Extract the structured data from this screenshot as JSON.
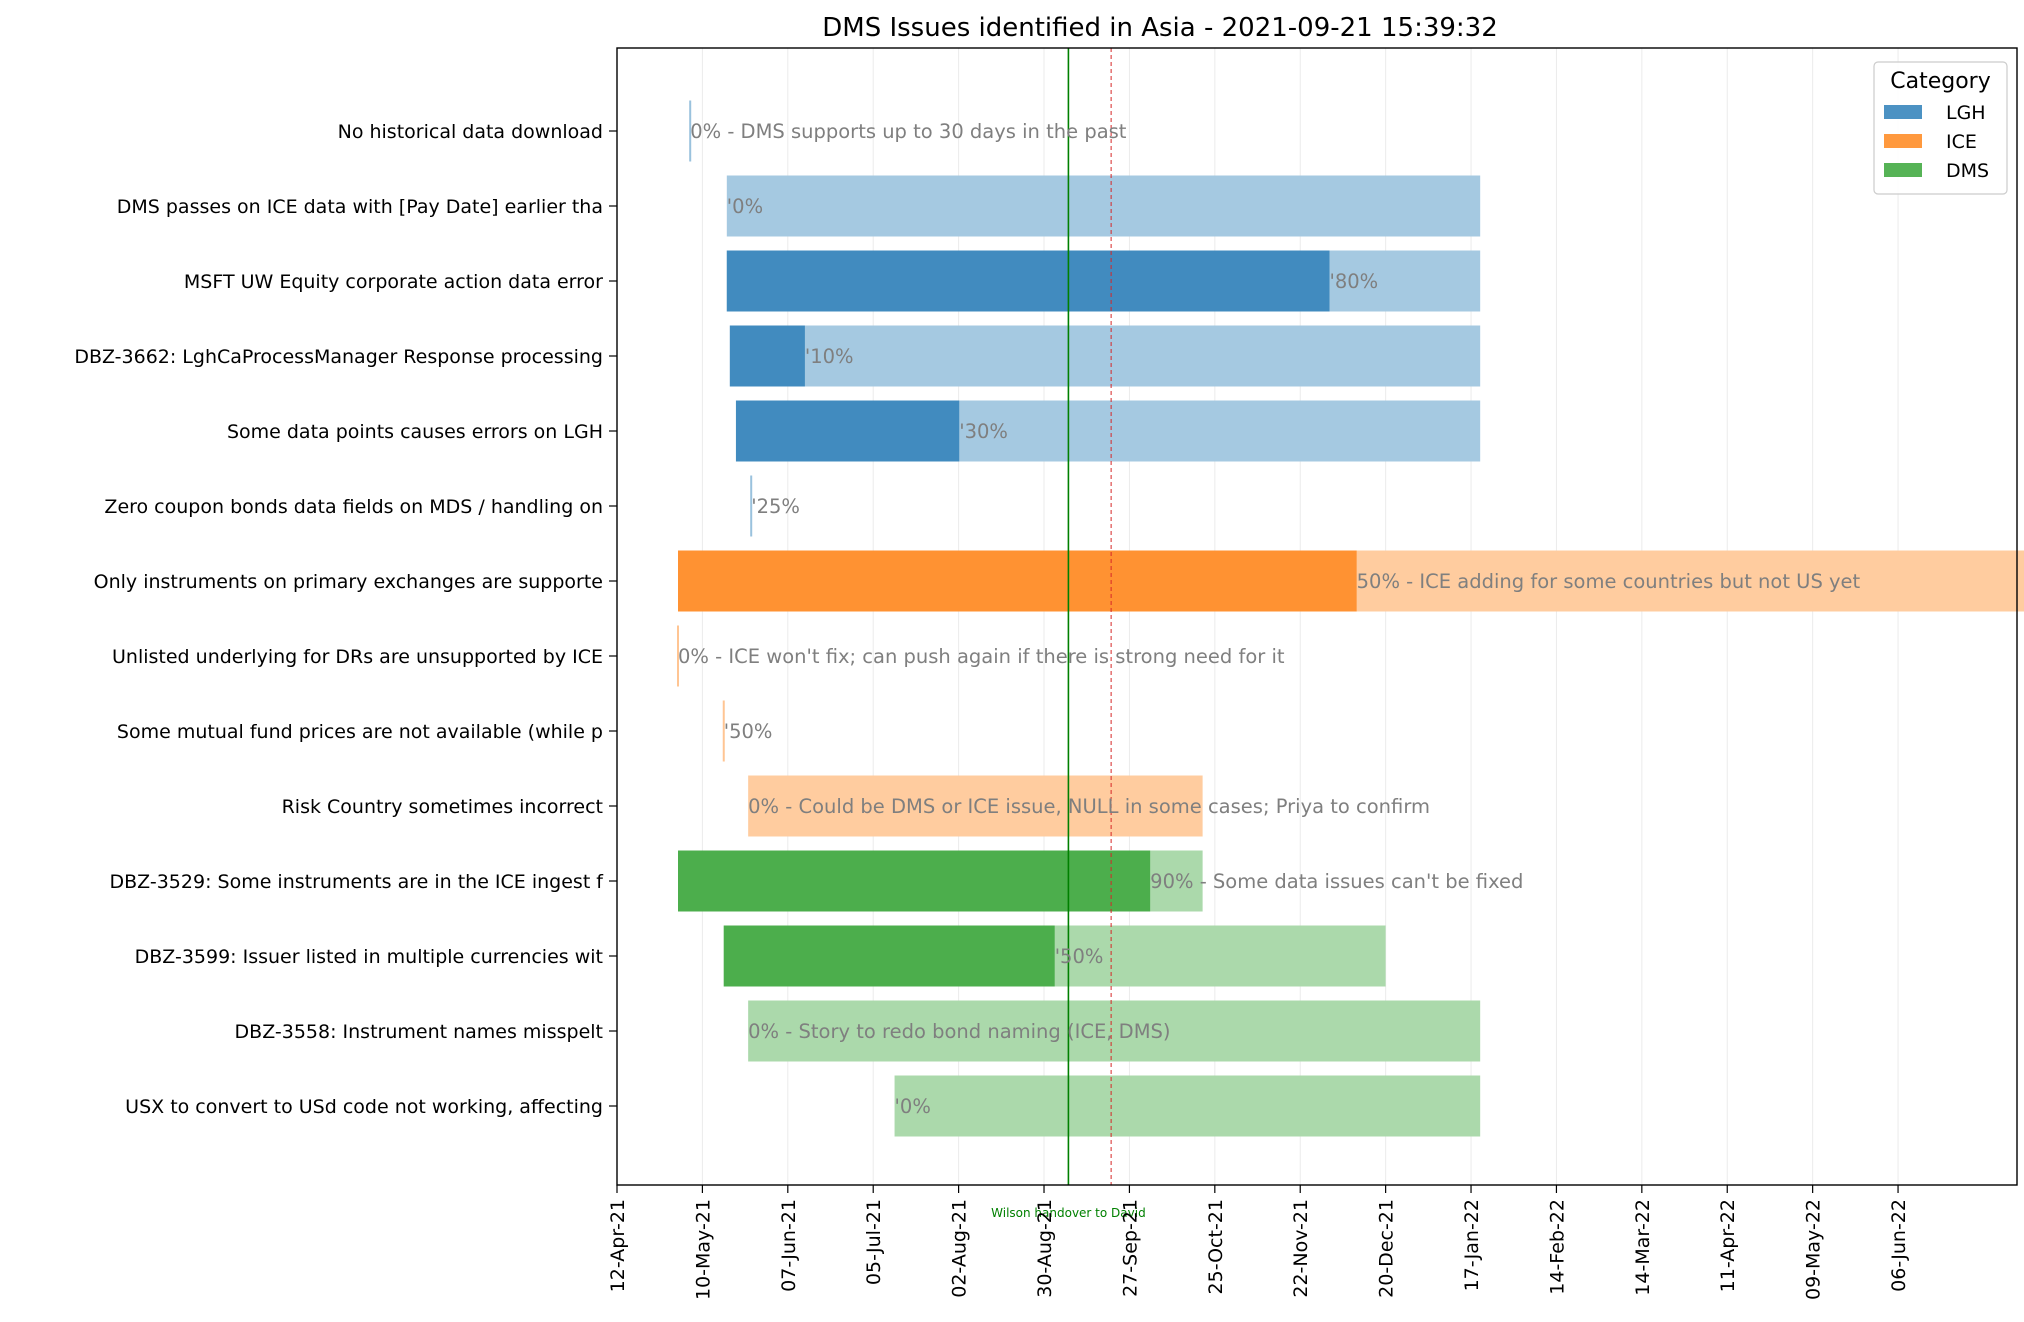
{
  "chart_data": {
    "type": "gantt",
    "title": "DMS Issues identified in Asia - 2021-09-21 15:39:32",
    "x_axis": {
      "type": "date",
      "range": [
        "2021-04-12",
        "2022-07-15"
      ],
      "tick_labels": [
        "12-Apr-21",
        "10-May-21",
        "07-Jun-21",
        "05-Jul-21",
        "02-Aug-21",
        "30-Aug-21",
        "27-Sep-21",
        "25-Oct-21",
        "22-Nov-21",
        "20-Dec-21",
        "17-Jan-22",
        "14-Feb-22",
        "14-Mar-22",
        "11-Apr-22",
        "09-May-22",
        "06-Jun-22"
      ],
      "tick_dates": [
        "2021-04-12",
        "2021-05-10",
        "2021-06-07",
        "2021-07-05",
        "2021-08-02",
        "2021-08-30",
        "2021-09-27",
        "2021-10-25",
        "2021-11-22",
        "2021-12-20",
        "2022-01-17",
        "2022-02-14",
        "2022-03-14",
        "2022-04-11",
        "2022-05-09",
        "2022-06-06"
      ],
      "vertical_grid": true
    },
    "colors": {
      "LGH": "#1f77b4",
      "ICE": "#ff7f0e",
      "DMS": "#2ca02c",
      "today_line": "#d62728"
    },
    "legend": {
      "title": "Category",
      "placement": "top-right",
      "entries": [
        "LGH",
        "ICE",
        "DMS"
      ]
    },
    "markers": [
      {
        "date": "2021-09-07",
        "label": "Wilson handover to David",
        "color": "#008000"
      },
      {
        "date": "2021-09-21",
        "label": "",
        "color": "#d62728",
        "style": "dashed"
      }
    ],
    "tasks": [
      {
        "name": "No historical data download",
        "category": "LGH",
        "start": "2021-05-06",
        "end": "2021-05-06",
        "progress": 0,
        "label": "0% - DMS supports up to 30 days in the past"
      },
      {
        "name": "DMS passes on ICE data with [Pay Date] earlier tha",
        "category": "LGH",
        "start": "2021-05-18",
        "end": "2022-01-20",
        "progress": 0,
        "label": "'0%"
      },
      {
        "name": "MSFT UW Equity corporate action data error",
        "category": "LGH",
        "start": "2021-05-18",
        "end": "2022-01-20",
        "progress": 0.8,
        "label": "'80%"
      },
      {
        "name": "DBZ-3662: LghCaProcessManager Response processing ",
        "category": "LGH",
        "start": "2021-05-19",
        "end": "2022-01-20",
        "progress": 0.1,
        "label": "'10%"
      },
      {
        "name": "Some data points causes errors on LGH",
        "category": "LGH",
        "start": "2021-05-21",
        "end": "2022-01-20",
        "progress": 0.3,
        "label": "'30%"
      },
      {
        "name": "Zero coupon bonds data fields on MDS / handling on",
        "category": "LGH",
        "start": "2021-05-26",
        "end": "2021-05-26",
        "progress": 0.25,
        "label": "'25%"
      },
      {
        "name": "Only instruments on primary exchanges are supporte",
        "category": "ICE",
        "start": "2021-05-02",
        "end": "2022-07-21",
        "progress": 0.5,
        "label": "50% - ICE adding for some countries but not US yet"
      },
      {
        "name": "Unlisted underlying for DRs are unsupported by ICE",
        "category": "ICE",
        "start": "2021-05-02",
        "end": "2021-05-02",
        "progress": 0,
        "label": "0% - ICE won't fix; can push again if there is strong need for it"
      },
      {
        "name": "Some mutual fund prices are not available (while p",
        "category": "ICE",
        "start": "2021-05-17",
        "end": "2021-05-17",
        "progress": 0.5,
        "label": "'50%"
      },
      {
        "name": "Risk Country sometimes incorrect",
        "category": "ICE",
        "start": "2021-05-25",
        "end": "2021-10-21",
        "progress": 0,
        "label": "0% - Could be DMS or ICE issue, NULL in some cases; Priya to confirm"
      },
      {
        "name": "DBZ-3529: Some instruments are in the ICE ingest f",
        "category": "DMS",
        "start": "2021-05-02",
        "end": "2021-10-21",
        "progress": 0.9,
        "label": "90% - Some data issues can't be fixed"
      },
      {
        "name": "DBZ-3599: Issuer listed in multiple currencies wit",
        "category": "DMS",
        "start": "2021-05-17",
        "end": "2021-12-20",
        "progress": 0.5,
        "label": "'50%"
      },
      {
        "name": "DBZ-3558: Instrument names misspelt",
        "category": "DMS",
        "start": "2021-05-25",
        "end": "2022-01-20",
        "progress": 0,
        "label": "0% - Story to redo bond naming (ICE, DMS)"
      },
      {
        "name": "USX to convert to USd code not working, affecting ",
        "category": "DMS",
        "start": "2021-07-12",
        "end": "2022-01-20",
        "progress": 0,
        "label": "'0%"
      }
    ]
  }
}
